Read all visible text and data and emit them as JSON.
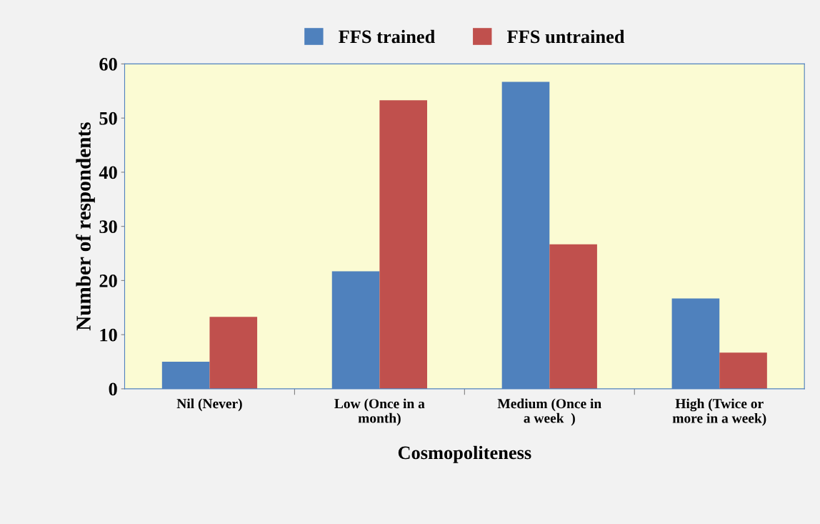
{
  "chart_data": {
    "type": "bar",
    "xlabel": "Cosmopoliteness",
    "ylabel": "Number of respondents",
    "categories": [
      "Nil (Never)",
      "Low (Once in a\nmonth)",
      "Medium (Once in\na week  )",
      "High (Twice or\nmore in a week)"
    ],
    "series": [
      {
        "name": "FFS trained",
        "color": "#4f81bd",
        "values": [
          5,
          21.7,
          56.7,
          16.7
        ]
      },
      {
        "name": "FFS untrained",
        "color": "#c0504d",
        "values": [
          13.3,
          53.3,
          26.7,
          6.7
        ]
      }
    ],
    "ylim": [
      0,
      60
    ],
    "yticks": [
      0,
      10,
      20,
      30,
      40,
      50,
      60
    ],
    "grid": false,
    "legend": "top"
  }
}
